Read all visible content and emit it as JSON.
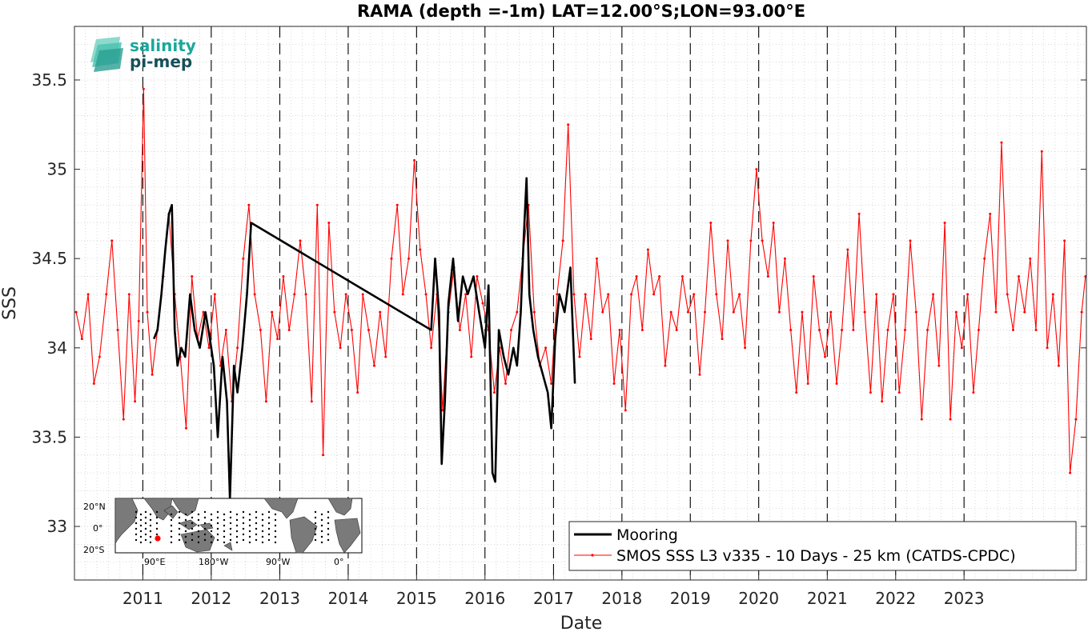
{
  "chart_data": {
    "type": "line",
    "title": "RAMA (depth =-1m) LAT=12.00°S;LON=93.00°E",
    "xlabel": "Date",
    "ylabel": "SSS",
    "xlim": [
      "2010-01-01",
      "2024-10-15"
    ],
    "ylim": [
      32.7,
      35.8
    ],
    "y_ticks": [
      "33",
      "33.5",
      "34",
      "34.5",
      "35",
      "35.5"
    ],
    "x_ticks": [
      "2011",
      "2012",
      "2013",
      "2014",
      "2015",
      "2016",
      "2017",
      "2018",
      "2019",
      "2020",
      "2021",
      "2022",
      "2023"
    ],
    "year_boundaries": [
      "2011-01-01",
      "2012-01-01",
      "2013-01-01",
      "2014-01-01",
      "2015-01-01",
      "2016-01-01",
      "2017-01-01",
      "2018-01-01",
      "2019-01-01",
      "2020-01-01",
      "2021-01-01",
      "2022-01-01",
      "2023-01-01"
    ],
    "grid": true,
    "legend_position": "bottom-right",
    "series": [
      {
        "name": "Mooring",
        "color": "#000000",
        "style": "thick line",
        "points": [
          [
            "2011-03-01",
            34.05
          ],
          [
            "2011-03-20",
            34.1
          ],
          [
            "2011-04-10",
            34.3
          ],
          [
            "2011-05-01",
            34.55
          ],
          [
            "2011-05-20",
            34.75
          ],
          [
            "2011-06-05",
            34.8
          ],
          [
            "2011-06-20",
            34.1
          ],
          [
            "2011-07-05",
            33.9
          ],
          [
            "2011-07-25",
            34.0
          ],
          [
            "2011-08-15",
            33.95
          ],
          [
            "2011-09-10",
            34.3
          ],
          [
            "2011-10-05",
            34.1
          ],
          [
            "2011-11-01",
            34.0
          ],
          [
            "2011-12-01",
            34.2
          ],
          [
            "2011-12-25",
            34.05
          ],
          [
            "2012-01-15",
            33.9
          ],
          [
            "2012-02-05",
            33.5
          ],
          [
            "2012-03-01",
            33.95
          ],
          [
            "2012-03-25",
            33.7
          ],
          [
            "2012-04-10",
            33.15
          ],
          [
            "2012-05-01",
            33.9
          ],
          [
            "2012-05-20",
            33.75
          ],
          [
            "2012-06-15",
            34.0
          ],
          [
            "2012-07-10",
            34.3
          ],
          [
            "2012-08-01",
            34.7
          ],
          [
            "2015-03-20",
            34.1
          ],
          [
            "2015-04-10",
            34.5
          ],
          [
            "2015-05-01",
            34.2
          ],
          [
            "2015-05-15",
            33.35
          ],
          [
            "2015-06-01",
            33.7
          ],
          [
            "2015-06-20",
            34.25
          ],
          [
            "2015-07-15",
            34.5
          ],
          [
            "2015-08-10",
            34.15
          ],
          [
            "2015-09-05",
            34.4
          ],
          [
            "2015-10-01",
            34.3
          ],
          [
            "2015-11-01",
            34.4
          ],
          [
            "2015-12-01",
            34.2
          ],
          [
            "2016-01-01",
            34.0
          ],
          [
            "2016-01-20",
            34.35
          ],
          [
            "2016-02-10",
            33.3
          ],
          [
            "2016-02-25",
            33.25
          ],
          [
            "2016-03-15",
            34.1
          ],
          [
            "2016-04-10",
            33.95
          ],
          [
            "2016-05-05",
            33.85
          ],
          [
            "2016-06-01",
            34.0
          ],
          [
            "2016-06-20",
            33.9
          ],
          [
            "2016-07-10",
            34.2
          ],
          [
            "2016-07-25",
            34.6
          ],
          [
            "2016-08-10",
            34.95
          ],
          [
            "2016-08-25",
            34.3
          ],
          [
            "2016-09-15",
            34.1
          ],
          [
            "2016-10-10",
            33.95
          ],
          [
            "2016-11-05",
            33.85
          ],
          [
            "2016-12-01",
            33.75
          ],
          [
            "2016-12-20",
            33.55
          ],
          [
            "2017-01-10",
            34.05
          ],
          [
            "2017-02-01",
            34.3
          ],
          [
            "2017-03-01",
            34.2
          ],
          [
            "2017-04-01",
            34.45
          ],
          [
            "2017-04-25",
            33.8
          ]
        ]
      },
      {
        "name": "SMOS SSS L3 v335 - 10 Days - 25 km (CATDS-CPDC)",
        "color": "#ff0000",
        "style": "thin line with dot markers",
        "points": [
          [
            "2010-01-10",
            34.2
          ],
          [
            "2010-02-10",
            34.05
          ],
          [
            "2010-03-15",
            34.3
          ],
          [
            "2010-04-15",
            33.8
          ],
          [
            "2010-05-15",
            33.95
          ],
          [
            "2010-06-20",
            34.3
          ],
          [
            "2010-07-20",
            34.6
          ],
          [
            "2010-08-20",
            34.1
          ],
          [
            "2010-09-20",
            33.6
          ],
          [
            "2010-10-20",
            34.3
          ],
          [
            "2010-11-20",
            33.7
          ],
          [
            "2010-12-10",
            34.15
          ],
          [
            "2011-01-05",
            35.45
          ],
          [
            "2011-01-25",
            34.2
          ],
          [
            "2011-02-20",
            33.85
          ],
          [
            "2011-03-20",
            34.1
          ],
          [
            "2011-04-20",
            34.4
          ],
          [
            "2011-05-20",
            34.75
          ],
          [
            "2011-06-20",
            34.3
          ],
          [
            "2011-07-20",
            33.95
          ],
          [
            "2011-08-20",
            33.55
          ],
          [
            "2011-09-20",
            34.4
          ],
          [
            "2011-10-20",
            34.05
          ],
          [
            "2011-11-20",
            34.2
          ],
          [
            "2011-12-20",
            34.0
          ],
          [
            "2012-01-20",
            34.3
          ],
          [
            "2012-02-20",
            33.9
          ],
          [
            "2012-03-20",
            34.1
          ],
          [
            "2012-04-20",
            33.7
          ],
          [
            "2012-05-20",
            34.0
          ],
          [
            "2012-06-20",
            34.5
          ],
          [
            "2012-07-20",
            34.8
          ],
          [
            "2012-08-20",
            34.3
          ],
          [
            "2012-09-20",
            34.1
          ],
          [
            "2012-10-20",
            33.7
          ],
          [
            "2012-11-20",
            34.2
          ],
          [
            "2012-12-20",
            34.05
          ],
          [
            "2013-01-20",
            34.4
          ],
          [
            "2013-02-20",
            34.1
          ],
          [
            "2013-03-20",
            34.3
          ],
          [
            "2013-04-20",
            34.6
          ],
          [
            "2013-05-20",
            34.3
          ],
          [
            "2013-06-20",
            33.7
          ],
          [
            "2013-07-20",
            34.8
          ],
          [
            "2013-08-20",
            33.4
          ],
          [
            "2013-09-20",
            34.7
          ],
          [
            "2013-10-20",
            34.2
          ],
          [
            "2013-11-20",
            34.0
          ],
          [
            "2013-12-20",
            34.3
          ],
          [
            "2014-01-20",
            34.1
          ],
          [
            "2014-02-20",
            33.75
          ],
          [
            "2014-03-20",
            34.3
          ],
          [
            "2014-04-20",
            34.1
          ],
          [
            "2014-05-20",
            33.9
          ],
          [
            "2014-06-20",
            34.2
          ],
          [
            "2014-07-20",
            33.95
          ],
          [
            "2014-08-20",
            34.5
          ],
          [
            "2014-09-20",
            34.8
          ],
          [
            "2014-10-20",
            34.3
          ],
          [
            "2014-11-20",
            34.5
          ],
          [
            "2014-12-20",
            35.05
          ],
          [
            "2015-01-20",
            34.55
          ],
          [
            "2015-02-20",
            34.3
          ],
          [
            "2015-03-20",
            34.0
          ],
          [
            "2015-04-20",
            34.3
          ],
          [
            "2015-05-20",
            33.65
          ],
          [
            "2015-06-20",
            34.2
          ],
          [
            "2015-07-20",
            34.45
          ],
          [
            "2015-08-20",
            34.1
          ],
          [
            "2015-09-20",
            34.3
          ],
          [
            "2015-10-20",
            33.95
          ],
          [
            "2015-11-20",
            34.4
          ],
          [
            "2015-12-20",
            34.25
          ],
          [
            "2016-01-20",
            34.1
          ],
          [
            "2016-02-20",
            33.75
          ],
          [
            "2016-03-20",
            34.0
          ],
          [
            "2016-04-20",
            33.8
          ],
          [
            "2016-05-20",
            34.1
          ],
          [
            "2016-06-20",
            34.2
          ],
          [
            "2016-07-20",
            34.5
          ],
          [
            "2016-08-20",
            34.8
          ],
          [
            "2016-09-20",
            34.2
          ],
          [
            "2016-10-20",
            33.9
          ],
          [
            "2016-11-20",
            34.0
          ],
          [
            "2016-12-20",
            33.8
          ],
          [
            "2017-01-20",
            34.3
          ],
          [
            "2017-02-20",
            34.6
          ],
          [
            "2017-03-20",
            35.25
          ],
          [
            "2017-04-20",
            34.3
          ],
          [
            "2017-05-20",
            33.95
          ],
          [
            "2017-06-20",
            34.3
          ],
          [
            "2017-07-20",
            34.05
          ],
          [
            "2017-08-20",
            34.5
          ],
          [
            "2017-09-20",
            34.2
          ],
          [
            "2017-10-20",
            34.3
          ],
          [
            "2017-11-20",
            33.8
          ],
          [
            "2017-12-20",
            34.1
          ],
          [
            "2018-01-20",
            33.65
          ],
          [
            "2018-02-20",
            34.3
          ],
          [
            "2018-03-20",
            34.4
          ],
          [
            "2018-04-20",
            34.1
          ],
          [
            "2018-05-20",
            34.55
          ],
          [
            "2018-06-20",
            34.3
          ],
          [
            "2018-07-20",
            34.4
          ],
          [
            "2018-08-20",
            33.9
          ],
          [
            "2018-09-20",
            34.2
          ],
          [
            "2018-10-20",
            34.1
          ],
          [
            "2018-11-20",
            34.4
          ],
          [
            "2018-12-20",
            34.2
          ],
          [
            "2019-01-20",
            34.3
          ],
          [
            "2019-02-20",
            33.85
          ],
          [
            "2019-03-20",
            34.2
          ],
          [
            "2019-04-20",
            34.7
          ],
          [
            "2019-05-20",
            34.3
          ],
          [
            "2019-06-20",
            34.05
          ],
          [
            "2019-07-20",
            34.6
          ],
          [
            "2019-08-20",
            34.2
          ],
          [
            "2019-09-20",
            34.3
          ],
          [
            "2019-10-20",
            34.0
          ],
          [
            "2019-11-20",
            34.6
          ],
          [
            "2019-12-20",
            35.0
          ],
          [
            "2020-01-20",
            34.6
          ],
          [
            "2020-02-20",
            34.4
          ],
          [
            "2020-03-20",
            34.7
          ],
          [
            "2020-04-20",
            34.2
          ],
          [
            "2020-05-20",
            34.5
          ],
          [
            "2020-06-20",
            34.1
          ],
          [
            "2020-07-20",
            33.75
          ],
          [
            "2020-08-20",
            34.2
          ],
          [
            "2020-09-20",
            33.8
          ],
          [
            "2020-10-20",
            34.4
          ],
          [
            "2020-11-20",
            34.1
          ],
          [
            "2020-12-20",
            33.95
          ],
          [
            "2021-01-20",
            34.2
          ],
          [
            "2021-02-20",
            33.8
          ],
          [
            "2021-03-20",
            34.1
          ],
          [
            "2021-04-20",
            34.55
          ],
          [
            "2021-05-20",
            34.1
          ],
          [
            "2021-06-20",
            34.75
          ],
          [
            "2021-07-20",
            34.2
          ],
          [
            "2021-08-20",
            33.75
          ],
          [
            "2021-09-20",
            34.3
          ],
          [
            "2021-10-20",
            33.7
          ],
          [
            "2021-11-20",
            34.1
          ],
          [
            "2021-12-20",
            34.3
          ],
          [
            "2022-01-20",
            33.75
          ],
          [
            "2022-02-20",
            34.1
          ],
          [
            "2022-03-20",
            34.6
          ],
          [
            "2022-04-20",
            34.2
          ],
          [
            "2022-05-20",
            33.6
          ],
          [
            "2022-06-20",
            34.1
          ],
          [
            "2022-07-20",
            34.3
          ],
          [
            "2022-08-20",
            33.9
          ],
          [
            "2022-09-20",
            34.7
          ],
          [
            "2022-10-20",
            33.6
          ],
          [
            "2022-11-20",
            34.2
          ],
          [
            "2022-12-20",
            34.0
          ],
          [
            "2023-01-20",
            34.3
          ],
          [
            "2023-02-20",
            33.75
          ],
          [
            "2023-03-20",
            34.1
          ],
          [
            "2023-04-20",
            34.5
          ],
          [
            "2023-05-20",
            34.75
          ],
          [
            "2023-06-20",
            34.2
          ],
          [
            "2023-07-20",
            35.15
          ],
          [
            "2023-08-20",
            34.3
          ],
          [
            "2023-09-20",
            34.1
          ],
          [
            "2023-10-20",
            34.4
          ],
          [
            "2023-11-20",
            34.2
          ],
          [
            "2023-12-20",
            34.5
          ],
          [
            "2024-01-20",
            34.1
          ],
          [
            "2024-02-20",
            35.1
          ],
          [
            "2024-03-20",
            34.0
          ],
          [
            "2024-04-20",
            34.3
          ],
          [
            "2024-05-20",
            33.9
          ],
          [
            "2024-06-20",
            34.6
          ],
          [
            "2024-07-20",
            33.3
          ],
          [
            "2024-08-20",
            33.6
          ],
          [
            "2024-09-20",
            34.2
          ],
          [
            "2024-10-10",
            34.4
          ]
        ]
      }
    ]
  },
  "logo": {
    "line1": "salinity",
    "line2": "pi-mep"
  },
  "inset_map": {
    "lat_labels": [
      "20°N",
      "0°",
      "20°S"
    ],
    "lon_labels": [
      "90°E",
      "180°W",
      "90°W",
      "0°"
    ],
    "marker_color": "#ff0000"
  }
}
